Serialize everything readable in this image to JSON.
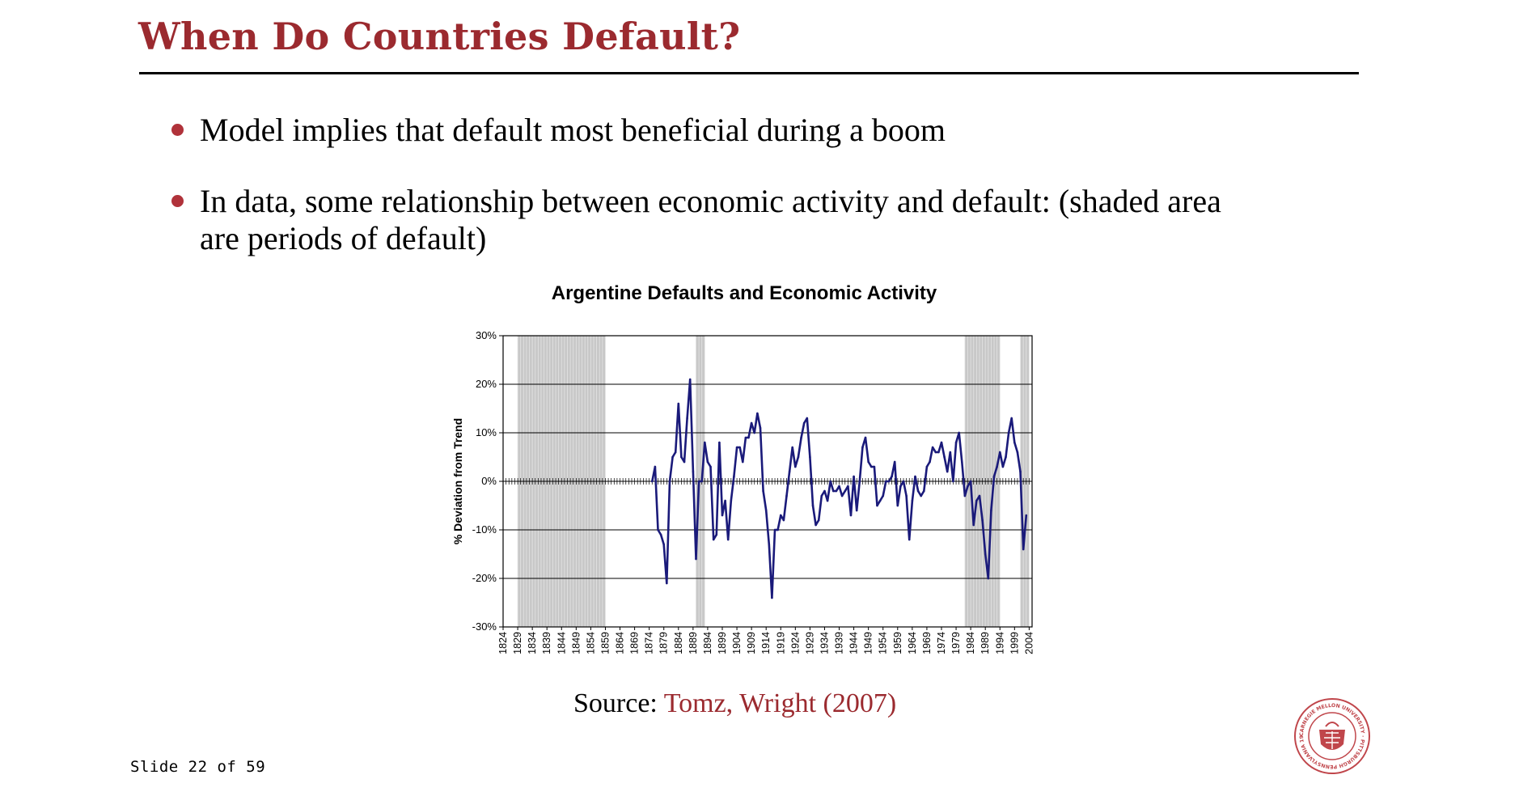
{
  "slide": {
    "title": "When Do Countries Default?",
    "bullets": [
      {
        "text": "Model implies that default most beneficial during a boom"
      },
      {
        "text": "In data, some relationship between economic activity and default: (shaded area are periods of default)"
      }
    ],
    "source_prefix": "Source:",
    "source_link": "Tomz, Wright (2007)",
    "slide_number": "Slide 22 of 59",
    "logo": {
      "name": "carnegie-mellon-seal",
      "ring_text": "CARNEGIE MELLON UNIVERSITY · PITTSBURGH PENNSYLVANIA 1900",
      "color": "#c0464b"
    }
  },
  "colors": {
    "title": "#9b2a2f",
    "bullet": "#b0323a",
    "line": "#1a1a7a",
    "shade": "#c8c8c8"
  },
  "chart_data": {
    "type": "line",
    "title": "Argentine Defaults and Economic Activity",
    "xlabel": "",
    "ylabel": "% Deviation from Trend",
    "ylim": [
      -30,
      30
    ],
    "xlim": [
      1824,
      2005
    ],
    "y_ticks": [
      "30%",
      "20%",
      "10%",
      "0%",
      "-10%",
      "-20%",
      "-30%"
    ],
    "x_ticks": [
      1824,
      1829,
      1834,
      1839,
      1844,
      1849,
      1854,
      1859,
      1864,
      1869,
      1874,
      1879,
      1884,
      1889,
      1894,
      1899,
      1904,
      1909,
      1914,
      1919,
      1924,
      1929,
      1934,
      1939,
      1944,
      1949,
      1954,
      1959,
      1964,
      1969,
      1974,
      1979,
      1984,
      1989,
      1994,
      1999,
      2004
    ],
    "grid": true,
    "legend": "none",
    "default_periods": [
      [
        1829,
        1859
      ],
      [
        1890,
        1893
      ],
      [
        1982,
        1994
      ],
      [
        2001,
        2004
      ]
    ],
    "series": [
      {
        "x": [
          1875,
          1876,
          1877,
          1878,
          1879,
          1880,
          1881,
          1882,
          1883,
          1884,
          1885,
          1886,
          1887,
          1888,
          1889,
          1890,
          1891,
          1892,
          1893,
          1894,
          1895,
          1896,
          1897,
          1898,
          1899,
          1900,
          1901,
          1902,
          1903,
          1904,
          1905,
          1906,
          1907,
          1908,
          1909,
          1910,
          1911,
          1912,
          1913,
          1914,
          1915,
          1916,
          1917,
          1918,
          1919,
          1920,
          1921,
          1922,
          1923,
          1924,
          1925,
          1926,
          1927,
          1928,
          1929,
          1930,
          1931,
          1932,
          1933,
          1934,
          1935,
          1936,
          1937,
          1938,
          1939,
          1940,
          1941,
          1942,
          1943,
          1944,
          1945,
          1946,
          1947,
          1948,
          1949,
          1950,
          1951,
          1952,
          1953,
          1954,
          1955,
          1956,
          1957,
          1958,
          1959,
          1960,
          1961,
          1962,
          1963,
          1964,
          1965,
          1966,
          1967,
          1968,
          1969,
          1970,
          1971,
          1972,
          1973,
          1974,
          1975,
          1976,
          1977,
          1978,
          1979,
          1980,
          1981,
          1982,
          1983,
          1984,
          1985,
          1986,
          1987,
          1988,
          1989,
          1990,
          1991,
          1992,
          1993,
          1994,
          1995,
          1996,
          1997,
          1998,
          1999,
          2000,
          2001,
          2002,
          2003
        ],
        "values": [
          0,
          3,
          -10,
          -11,
          -13,
          -21,
          0,
          5,
          6,
          16,
          5,
          4,
          13,
          21,
          2,
          -16,
          0,
          0,
          8,
          4,
          3,
          -12,
          -11,
          8,
          -7,
          -4,
          -12,
          -4,
          1,
          7,
          7,
          4,
          9,
          9,
          12,
          10,
          14,
          11,
          -2,
          -6,
          -13,
          -24,
          -10,
          -10,
          -7,
          -8,
          -3,
          2,
          7,
          3,
          5,
          9,
          12,
          13,
          5,
          -5,
          -9,
          -8,
          -3,
          -2,
          -4,
          0,
          -2,
          -2,
          -1,
          -3,
          -2,
          -1,
          -7,
          1,
          -6,
          0,
          7,
          9,
          4,
          3,
          3,
          -5,
          -4,
          -3,
          0,
          0,
          1,
          4,
          -5,
          -1,
          0,
          -3,
          -12,
          -4,
          1,
          -2,
          -3,
          -2,
          3,
          4,
          7,
          6,
          6,
          8,
          5,
          2,
          6,
          0,
          8,
          10,
          4,
          -3,
          -1,
          0,
          -9,
          -4,
          -3,
          -8,
          -15,
          -20,
          -6,
          1,
          3,
          6,
          3,
          5,
          10,
          13,
          8,
          6,
          2,
          -14,
          -7
        ]
      }
    ]
  }
}
